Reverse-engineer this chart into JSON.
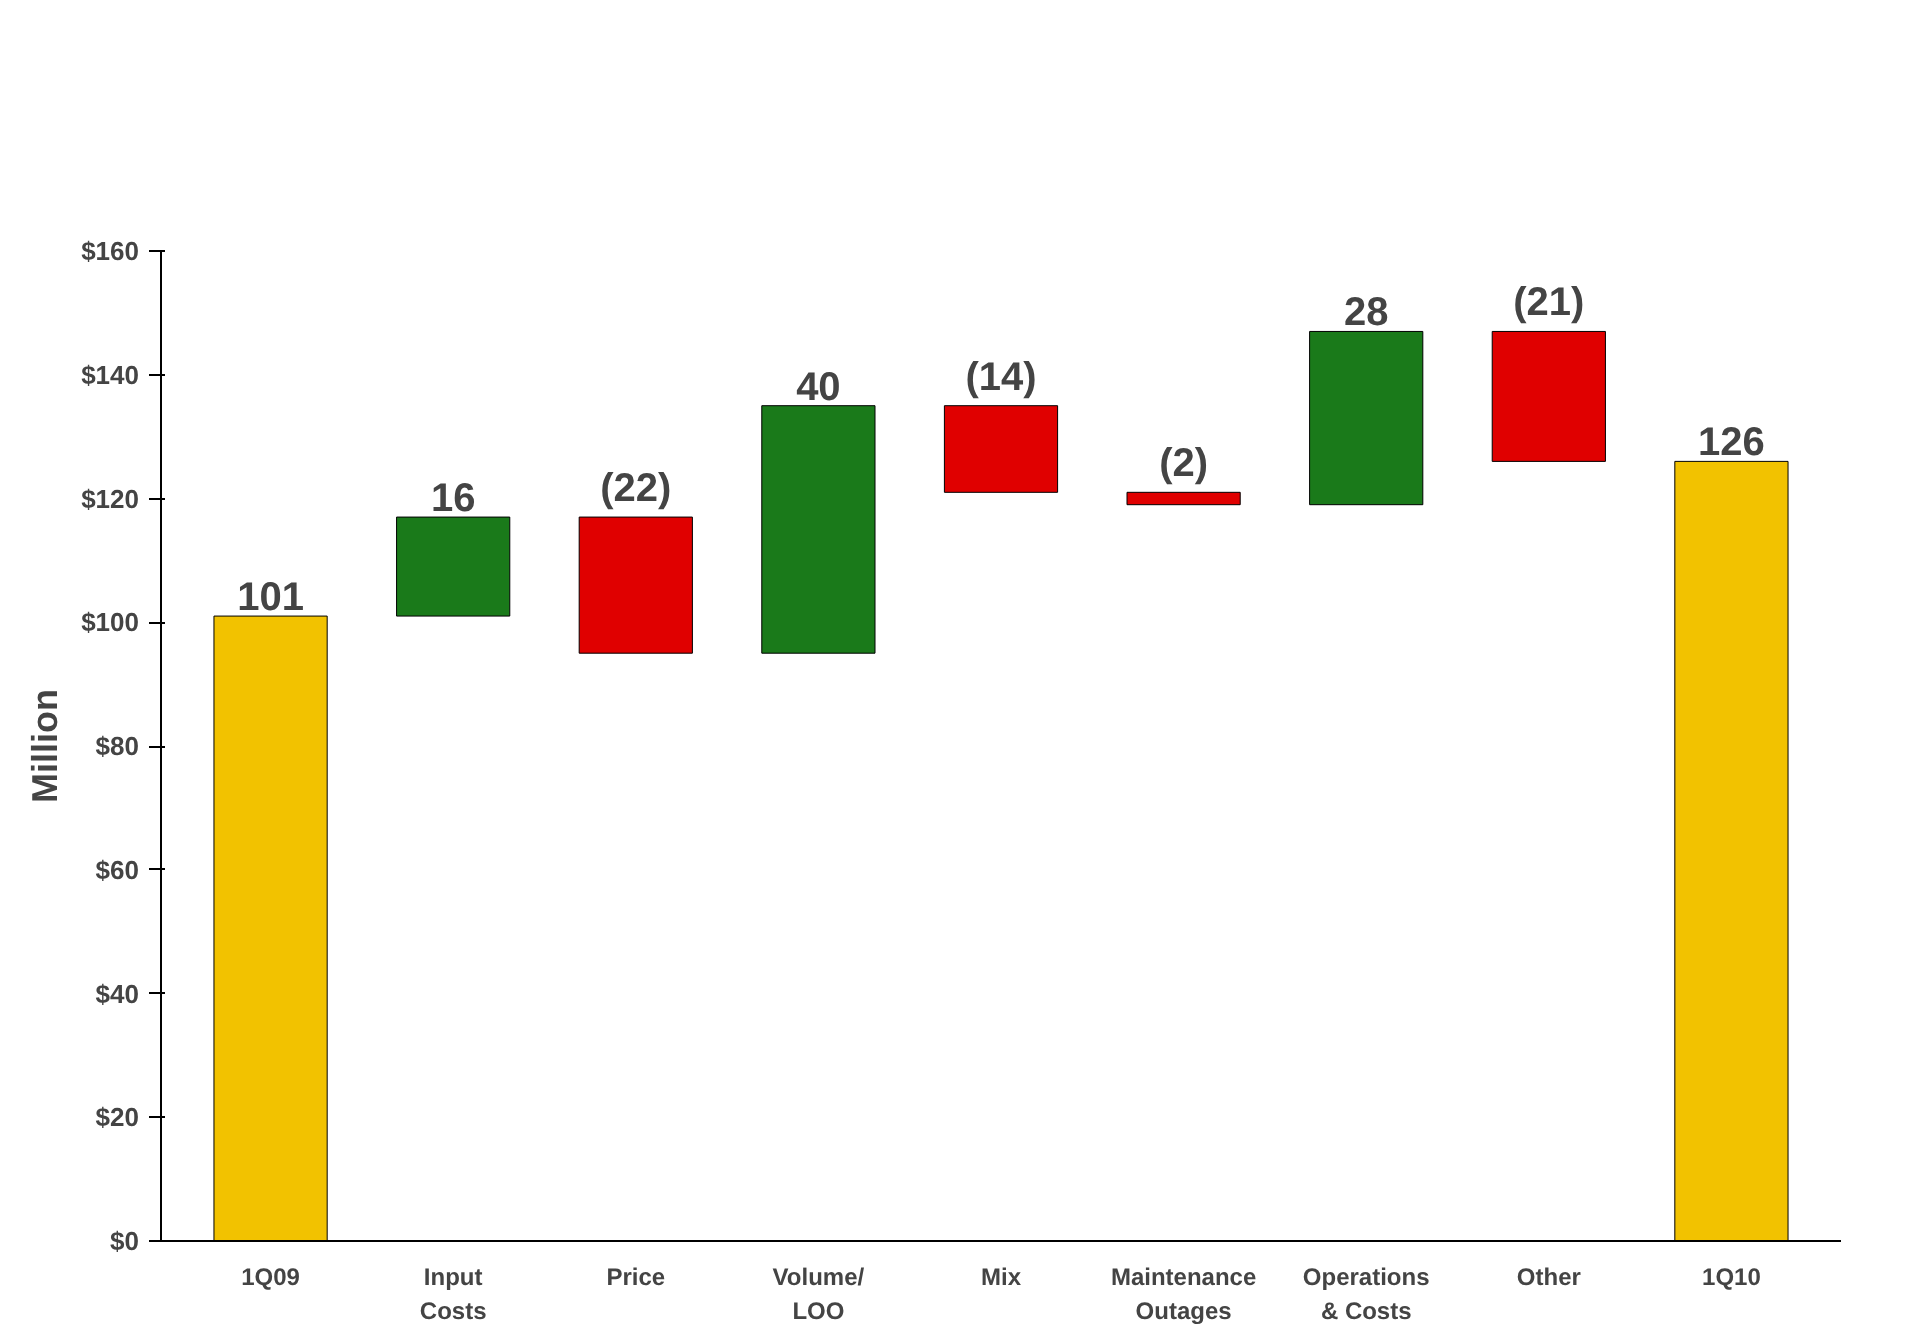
{
  "chart_data": {
    "type": "bar",
    "ylabel": "Million",
    "categories": [
      "1Q09",
      "Input\nCosts",
      "Price",
      "Volume/\nLOO",
      "Mix",
      "Maintenance\nOutages",
      "Operations\n& Costs",
      "Other",
      "1Q10"
    ],
    "values": [
      101,
      16,
      -22,
      40,
      -14,
      -2,
      28,
      -21,
      126
    ],
    "base": [
      0,
      101,
      117,
      95,
      135,
      121,
      119,
      147,
      0
    ],
    "colors": [
      "#f2c200",
      "#1a7a1a",
      "#e00000",
      "#1a7a1a",
      "#e00000",
      "#e00000",
      "#1a7a1a",
      "#e00000",
      "#f2c200"
    ],
    "value_labels": [
      "101",
      "16",
      "(22)",
      "40",
      "(14)",
      "(2)",
      "28",
      "(21)",
      "126"
    ],
    "ylim": [
      0,
      160
    ],
    "yticks": [
      {
        "value": 0,
        "label": "$0"
      },
      {
        "value": 20,
        "label": "$20"
      },
      {
        "value": 40,
        "label": "$40"
      },
      {
        "value": 60,
        "label": "$60"
      },
      {
        "value": 80,
        "label": "$80"
      },
      {
        "value": 100,
        "label": "$100"
      },
      {
        "value": 120,
        "label": "$120"
      },
      {
        "value": 140,
        "label": "$140"
      },
      {
        "value": 160,
        "label": "$160"
      }
    ],
    "grid": false
  }
}
